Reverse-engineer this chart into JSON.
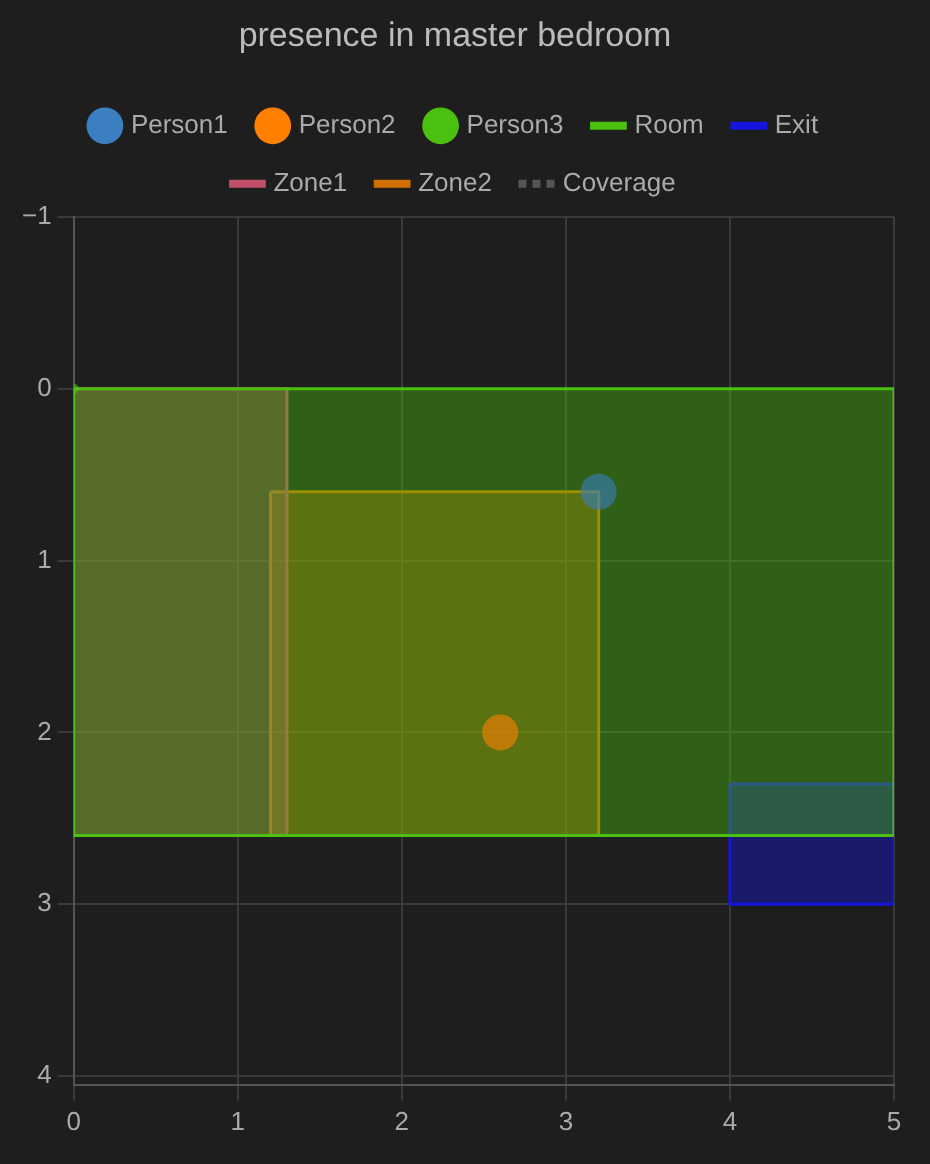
{
  "chart_data": {
    "type": "scatter",
    "title": "presence in master bedroom",
    "series": [
      {
        "name": "Person1",
        "color": "#3b7fc0",
        "x": [
          3.2
        ],
        "values": [
          0.6
        ]
      },
      {
        "name": "Person2",
        "color": "#ff8000",
        "x": [
          2.6
        ],
        "values": [
          2.0
        ]
      },
      {
        "name": "Person3",
        "color": "#4cc010",
        "x": [
          0
        ],
        "values": [
          0
        ]
      },
      {
        "name": "Room",
        "type": "area",
        "color": "#4cc010",
        "x": [
          0,
          5,
          5,
          0,
          0
        ],
        "values": [
          0,
          0,
          2.6,
          2.6,
          0
        ]
      },
      {
        "name": "Exit",
        "type": "area",
        "color": "#1515e0",
        "x": [
          4,
          5,
          5,
          4,
          4
        ],
        "values": [
          2.3,
          2.3,
          3,
          3,
          2.3
        ]
      },
      {
        "name": "Zone1",
        "type": "area",
        "color": "#c0506a",
        "x": [
          0,
          1.3,
          1.3,
          0,
          0
        ],
        "values": [
          0,
          0,
          2.6,
          2.6,
          0
        ]
      },
      {
        "name": "Zone2",
        "type": "area",
        "color": "#d07000",
        "x": [
          1.2,
          3.2,
          3.2,
          1.2,
          1.2
        ],
        "values": [
          0.6,
          0.6,
          2.6,
          2.6,
          0.6
        ]
      },
      {
        "name": "Coverage",
        "type": "line",
        "line_style": "dashed",
        "color": "#555555"
      }
    ],
    "xlim": [
      0,
      5
    ],
    "xticks": [
      0,
      1,
      2,
      3,
      4,
      5
    ],
    "ylim": [
      4.05,
      -1
    ],
    "yticks": [
      -1,
      0,
      1,
      2,
      3,
      4
    ],
    "grid": true,
    "legend": "top"
  }
}
